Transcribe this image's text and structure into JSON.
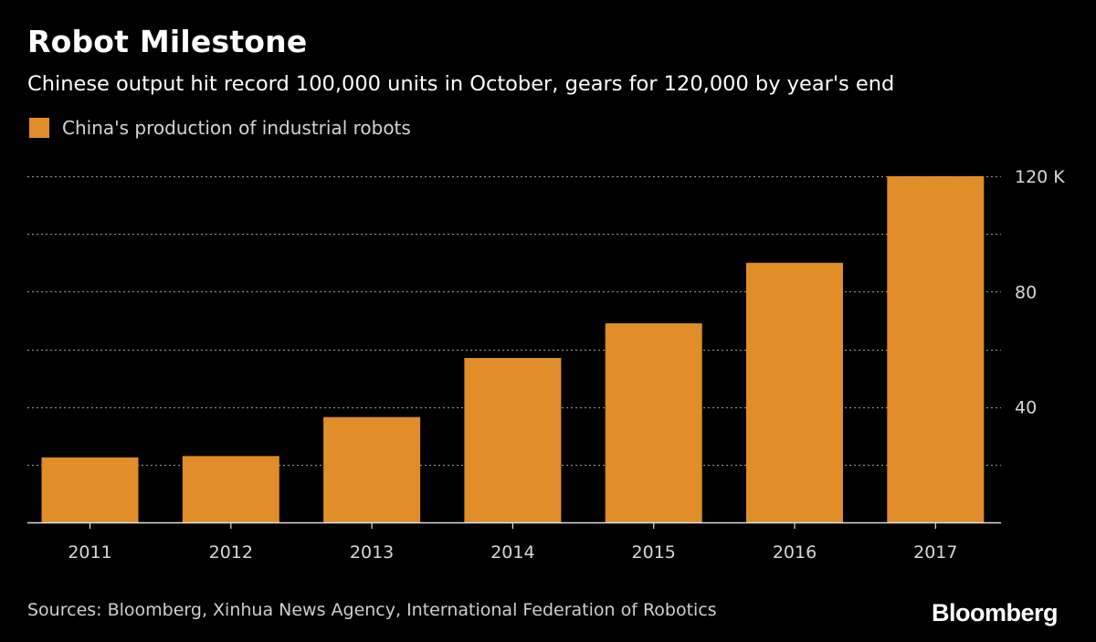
{
  "title": "Robot Milestone",
  "subtitle": "Chinese output hit record 100,000 units in October, gears for 120,000 by year's end",
  "source": "Sources: Bloomberg, Xinhua News Agency, International Federation of Robotics",
  "brand": "Bloomberg",
  "colors": {
    "background": "#000000",
    "bar": "#e08d2a",
    "grid": "#8a8a8a",
    "axis": "#dddddd"
  },
  "chart_data": {
    "type": "bar",
    "categories": [
      "2011",
      "2012",
      "2013",
      "2014",
      "2015",
      "2016",
      "2017"
    ],
    "series": [
      {
        "name": "China's production of industrial robots",
        "values": [
          22.5,
          23,
          36.5,
          57,
          69,
          90,
          120
        ]
      }
    ],
    "ylim": [
      0,
      120
    ],
    "yticks": [
      {
        "value": 40,
        "label": "40"
      },
      {
        "value": 80,
        "label": "80"
      },
      {
        "value": 120,
        "label": "120 K"
      }
    ],
    "grid": true,
    "grid_values": [
      20,
      40,
      60,
      80,
      100,
      120
    ],
    "y_axis_side": "right",
    "legend_position": "top-left"
  }
}
